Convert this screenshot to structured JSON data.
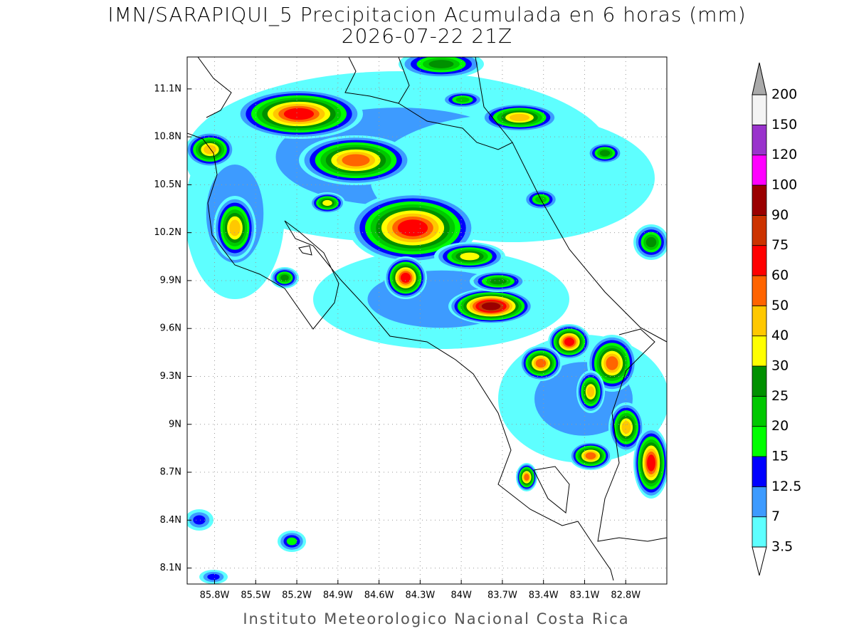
{
  "title": "IMN/SARAPIQUI_5 Precipitacion Acumulada en 6 horas (mm)",
  "subtitle": "2026-07-22 21Z",
  "footer": "Instituto Meteorologico Nacional Costa Rica",
  "map": {
    "xlim": [
      -86.0,
      -82.5
    ],
    "ylim": [
      8.0,
      11.3
    ],
    "grid": true,
    "xticks": [
      {
        "value": -85.8,
        "label": "85.8W"
      },
      {
        "value": -85.5,
        "label": "85.5W"
      },
      {
        "value": -85.2,
        "label": "85.2W"
      },
      {
        "value": -84.9,
        "label": "84.9W"
      },
      {
        "value": -84.6,
        "label": "84.6W"
      },
      {
        "value": -84.3,
        "label": "84.3W"
      },
      {
        "value": -84.0,
        "label": "84W"
      },
      {
        "value": -83.7,
        "label": "83.7W"
      },
      {
        "value": -83.4,
        "label": "83.4W"
      },
      {
        "value": -83.1,
        "label": "83.1W"
      },
      {
        "value": -82.8,
        "label": "82.8W"
      }
    ],
    "yticks": [
      {
        "value": 8.1,
        "label": "8.1N"
      },
      {
        "value": 8.4,
        "label": "8.4N"
      },
      {
        "value": 8.7,
        "label": "8.7N"
      },
      {
        "value": 9.0,
        "label": "9N"
      },
      {
        "value": 9.3,
        "label": "9.3N"
      },
      {
        "value": 9.6,
        "label": "9.6N"
      },
      {
        "value": 9.9,
        "label": "9.9N"
      },
      {
        "value": 10.2,
        "label": "10.2N"
      },
      {
        "value": 10.5,
        "label": "10.5N"
      },
      {
        "value": 10.8,
        "label": "10.8N"
      },
      {
        "value": 11.1,
        "label": "11.1N"
      }
    ]
  },
  "colorbar": {
    "levels": [
      3.5,
      7,
      12.5,
      15,
      20,
      25,
      30,
      40,
      50,
      60,
      75,
      90,
      100,
      120,
      150,
      200
    ],
    "colors": [
      "#ffffff",
      "#5effff",
      "#3d9bff",
      "#0000ff",
      "#00ff00",
      "#00c800",
      "#009000",
      "#ffff00",
      "#ffc800",
      "#ff6400",
      "#ff0000",
      "#cc3300",
      "#9a0000",
      "#ff00ff",
      "#9933cc",
      "#f4f4f4",
      "#aaaaaa"
    ]
  }
}
